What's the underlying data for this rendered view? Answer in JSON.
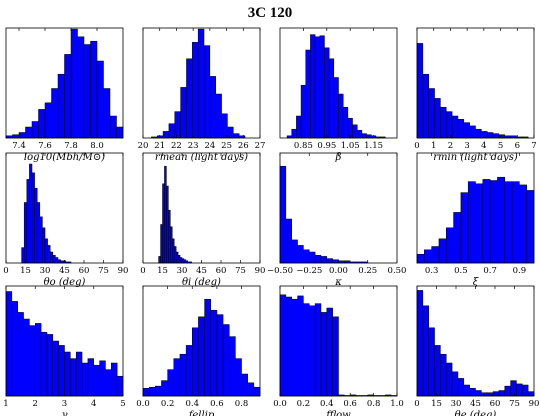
{
  "title": "3C 120",
  "colors": {
    "bar_fill": "#0000ff",
    "bar_stroke": "#000000",
    "axes": "#000000",
    "background": "#ffffff"
  },
  "chart_data": [
    {
      "type": "bar",
      "xlabel": "log10(Mbh/M⊙)",
      "xlim": [
        7.3,
        8.2
      ],
      "ylim": [
        0,
        1.0
      ],
      "xticks": [
        7.4,
        7.6,
        7.8,
        8.0
      ],
      "xtick_labels": [
        "7.4",
        "7.6",
        "7.8",
        "8.0"
      ],
      "bin_edges": [
        7.3,
        7.35,
        7.4,
        7.45,
        7.5,
        7.55,
        7.6,
        7.65,
        7.7,
        7.75,
        7.8,
        7.85,
        7.9,
        7.95,
        8.0,
        8.05,
        8.1,
        8.15,
        8.2
      ],
      "values": [
        0.02,
        0.03,
        0.05,
        0.1,
        0.15,
        0.26,
        0.32,
        0.45,
        0.58,
        0.76,
        0.99,
        0.92,
        0.85,
        0.88,
        0.7,
        0.45,
        0.2,
        0.1
      ]
    },
    {
      "type": "bar",
      "xlabel": "rmean (light days)",
      "xlim": [
        20,
        27
      ],
      "ylim": [
        0,
        1.0
      ],
      "xticks": [
        20,
        21,
        22,
        23,
        24,
        25,
        26,
        27
      ],
      "xtick_labels": [
        "20",
        "21",
        "22",
        "23",
        "24",
        "25",
        "26",
        "27"
      ],
      "bin_edges": [
        20.5,
        20.85,
        21.2,
        21.55,
        21.9,
        22.25,
        22.6,
        22.95,
        23.3,
        23.65,
        24.0,
        24.35,
        24.7,
        25.05,
        25.4,
        25.75,
        26.1
      ],
      "values": [
        0.01,
        0.02,
        0.06,
        0.13,
        0.24,
        0.46,
        0.72,
        0.87,
        0.99,
        0.84,
        0.56,
        0.4,
        0.22,
        0.1,
        0.04,
        0.02
      ]
    },
    {
      "type": "bar",
      "xlabel": "β",
      "xlim": [
        0.75,
        1.25
      ],
      "ylim": [
        0,
        1.0
      ],
      "xticks": [
        0.85,
        0.95,
        1.05,
        1.15
      ],
      "xtick_labels": [
        "0.85",
        "0.95",
        "1.05",
        "1.15"
      ],
      "bin_edges": [
        0.78,
        0.8,
        0.82,
        0.84,
        0.86,
        0.88,
        0.9,
        0.92,
        0.94,
        0.96,
        0.98,
        1.0,
        1.02,
        1.04,
        1.06,
        1.08,
        1.1,
        1.12,
        1.14,
        1.16,
        1.18,
        1.2
      ],
      "values": [
        0.02,
        0.08,
        0.2,
        0.48,
        0.8,
        0.94,
        0.92,
        0.93,
        0.82,
        0.72,
        0.55,
        0.4,
        0.28,
        0.18,
        0.12,
        0.07,
        0.04,
        0.03,
        0.02,
        0.01,
        0.01
      ]
    },
    {
      "type": "bar",
      "xlabel": "rmin (light days)",
      "xlim": [
        0,
        7
      ],
      "ylim": [
        0,
        1.0
      ],
      "xticks": [
        0,
        1,
        2,
        3,
        4,
        5,
        6,
        7
      ],
      "xtick_labels": [
        "0",
        "1",
        "2",
        "3",
        "4",
        "5",
        "6",
        "7"
      ],
      "bin_edges": [
        0.0,
        0.35,
        0.7,
        1.05,
        1.4,
        1.75,
        2.1,
        2.45,
        2.8,
        3.15,
        3.5,
        3.85,
        4.2,
        4.55,
        4.9,
        5.25,
        5.6,
        5.95,
        6.3,
        6.65
      ],
      "values": [
        0.86,
        0.58,
        0.45,
        0.36,
        0.28,
        0.24,
        0.2,
        0.17,
        0.14,
        0.11,
        0.08,
        0.06,
        0.05,
        0.04,
        0.03,
        0.02,
        0.02,
        0.01,
        0.01
      ]
    },
    {
      "type": "bar",
      "xlabel": "θo (deg)",
      "xlim": [
        0,
        90
      ],
      "ylim": [
        0,
        1.0
      ],
      "xticks": [
        0,
        15,
        30,
        45,
        60,
        75,
        90
      ],
      "xtick_labels": [
        "0",
        "15",
        "30",
        "45",
        "60",
        "75",
        "90"
      ],
      "bin_edges": [
        12,
        14,
        16,
        18,
        20,
        22,
        24,
        26,
        28,
        30,
        32,
        34,
        36,
        38,
        40,
        42,
        44,
        46,
        48,
        50
      ],
      "values": [
        0.14,
        0.55,
        0.76,
        0.9,
        0.82,
        0.68,
        0.55,
        0.42,
        0.32,
        0.22,
        0.16,
        0.1,
        0.07,
        0.05,
        0.03,
        0.02,
        0.02,
        0.01,
        0.01
      ]
    },
    {
      "type": "bar",
      "xlabel": "θi (deg)",
      "xlim": [
        0,
        90
      ],
      "ylim": [
        0,
        1.0
      ],
      "xticks": [
        0,
        15,
        30,
        45,
        60,
        75,
        90
      ],
      "xtick_labels": [
        "0",
        "15",
        "30",
        "45",
        "60",
        "75",
        "90"
      ],
      "bin_edges": [
        12,
        13.5,
        15,
        16.5,
        18,
        19.5,
        21,
        22.5,
        24,
        25.5,
        27,
        28.5,
        30,
        31.5,
        33,
        34.5,
        36,
        37.5
      ],
      "values": [
        0.06,
        0.35,
        0.72,
        0.88,
        0.7,
        0.48,
        0.33,
        0.22,
        0.15,
        0.1,
        0.07,
        0.05,
        0.04,
        0.03,
        0.02,
        0.01,
        0.01
      ]
    },
    {
      "type": "bar",
      "xlabel": "κ",
      "xlim": [
        -0.5,
        0.5
      ],
      "ylim": [
        0,
        1.0
      ],
      "xticks": [
        -0.5,
        -0.25,
        0.0,
        0.25,
        0.5
      ],
      "xtick_labels": [
        "−0.50",
        "−0.25",
        "0.00",
        "0.25",
        "0.50"
      ],
      "bin_edges": [
        -0.5,
        -0.45,
        -0.4,
        -0.35,
        -0.3,
        -0.25,
        -0.2,
        -0.15,
        -0.1,
        -0.05,
        0.0,
        0.05,
        0.1,
        0.15,
        0.2,
        0.25
      ],
      "values": [
        0.88,
        0.4,
        0.21,
        0.16,
        0.12,
        0.1,
        0.07,
        0.06,
        0.04,
        0.03,
        0.02,
        0.02,
        0.01,
        0.01,
        0.01
      ]
    },
    {
      "type": "bar",
      "xlabel": "ξ",
      "xlim": [
        0.2,
        1.0
      ],
      "ylim": [
        0,
        1.0
      ],
      "xticks": [
        0.3,
        0.5,
        0.7,
        0.9
      ],
      "xtick_labels": [
        "0.3",
        "0.5",
        "0.7",
        "0.9"
      ],
      "bin_edges": [
        0.2,
        0.25,
        0.3,
        0.35,
        0.4,
        0.45,
        0.5,
        0.55,
        0.6,
        0.65,
        0.7,
        0.75,
        0.8,
        0.85,
        0.9,
        0.95,
        1.0
      ],
      "values": [
        0.08,
        0.12,
        0.15,
        0.22,
        0.32,
        0.46,
        0.64,
        0.74,
        0.72,
        0.76,
        0.75,
        0.78,
        0.74,
        0.74,
        0.71,
        0.66
      ]
    },
    {
      "type": "bar",
      "xlabel": "γ",
      "xlim": [
        1,
        5
      ],
      "ylim": [
        0,
        1.0
      ],
      "xticks": [
        1,
        2,
        3,
        4,
        5
      ],
      "xtick_labels": [
        "1",
        "2",
        "3",
        "4",
        "5"
      ],
      "bin_edges": [
        1.0,
        1.2,
        1.4,
        1.6,
        1.8,
        2.0,
        2.2,
        2.4,
        2.6,
        2.8,
        3.0,
        3.2,
        3.4,
        3.6,
        3.8,
        4.0,
        4.2,
        4.4,
        4.6,
        4.8,
        5.0
      ],
      "values": [
        0.95,
        0.86,
        0.76,
        0.7,
        0.64,
        0.66,
        0.58,
        0.56,
        0.5,
        0.46,
        0.4,
        0.34,
        0.4,
        0.3,
        0.34,
        0.28,
        0.32,
        0.24,
        0.3,
        0.18
      ]
    },
    {
      "type": "bar",
      "xlabel": "fellip",
      "xlim": [
        0,
        0.95
      ],
      "ylim": [
        0,
        1.0
      ],
      "xticks": [
        0.0,
        0.2,
        0.4,
        0.6,
        0.8
      ],
      "xtick_labels": [
        "0.0",
        "0.2",
        "0.4",
        "0.6",
        "0.8"
      ],
      "bin_edges": [
        0.0,
        0.05,
        0.1,
        0.15,
        0.2,
        0.25,
        0.3,
        0.35,
        0.4,
        0.45,
        0.5,
        0.55,
        0.6,
        0.65,
        0.7,
        0.75,
        0.8,
        0.85,
        0.9,
        0.95
      ],
      "values": [
        0.07,
        0.08,
        0.09,
        0.14,
        0.24,
        0.34,
        0.38,
        0.46,
        0.62,
        0.72,
        0.88,
        0.78,
        0.74,
        0.65,
        0.54,
        0.34,
        0.2,
        0.12,
        0.08
      ]
    },
    {
      "type": "bar",
      "xlabel": "fflow",
      "xlim": [
        0,
        1.0
      ],
      "ylim": [
        0,
        1.0
      ],
      "xticks": [
        0.0,
        0.2,
        0.4,
        0.6,
        0.8,
        1.0
      ],
      "xtick_labels": [
        "0.0",
        "0.2",
        "0.4",
        "0.6",
        "0.8",
        "1.0"
      ],
      "bin_edges": [
        0.0,
        0.05,
        0.1,
        0.15,
        0.2,
        0.25,
        0.3,
        0.35,
        0.4,
        0.45,
        0.5,
        0.55,
        0.6,
        0.65,
        0.7,
        0.75,
        0.8,
        0.85,
        0.9,
        0.95,
        1.0
      ],
      "values": [
        0.92,
        0.9,
        0.88,
        0.91,
        0.84,
        0.82,
        0.84,
        0.76,
        0.8,
        0.72,
        0.01,
        0.005,
        0.01,
        0.005,
        0.005,
        0.01,
        0.005,
        0.005,
        0.01,
        0.005
      ]
    },
    {
      "type": "bar",
      "xlabel": "θe (deg)",
      "xlim": [
        0,
        90
      ],
      "ylim": [
        0,
        1.0
      ],
      "xticks": [
        0,
        15,
        30,
        45,
        60,
        75,
        90
      ],
      "xtick_labels": [
        "0",
        "15",
        "30",
        "45",
        "60",
        "75",
        "90"
      ],
      "bin_edges": [
        0,
        4.5,
        9,
        13.5,
        18,
        22.5,
        27,
        31.5,
        36,
        40.5,
        45,
        49.5,
        54,
        58.5,
        63,
        67.5,
        72,
        76.5,
        81,
        85.5,
        90
      ],
      "values": [
        0.96,
        0.82,
        0.62,
        0.46,
        0.38,
        0.3,
        0.22,
        0.16,
        0.1,
        0.07,
        0.05,
        0.03,
        0.03,
        0.04,
        0.05,
        0.09,
        0.14,
        0.11,
        0.1,
        0.04
      ]
    }
  ]
}
